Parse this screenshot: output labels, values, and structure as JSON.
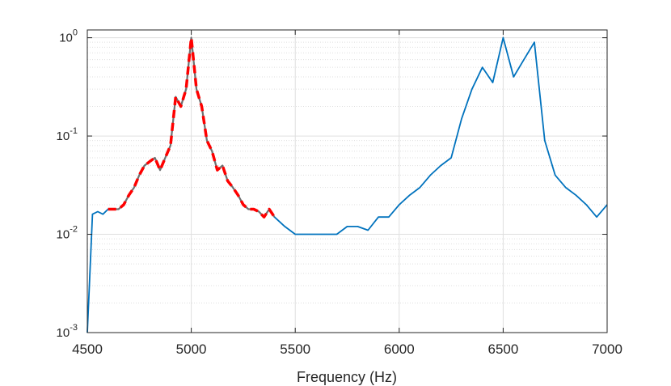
{
  "chart_data": {
    "type": "line",
    "xlabel": "Frequency (Hz)",
    "ylabel": "",
    "xlim": [
      4500,
      7000
    ],
    "ylim": [
      0.001,
      1.2
    ],
    "yscale": "log",
    "grid": true,
    "minor_grid_y": true,
    "x_ticks": [
      "4500",
      "5000",
      "5500",
      "6000",
      "6500",
      "7000"
    ],
    "y_ticks": [
      {
        "base": "10",
        "exp": "-3"
      },
      {
        "base": "10",
        "exp": "-2"
      },
      {
        "base": "10",
        "exp": "-1"
      },
      {
        "base": "10",
        "exp": "0"
      }
    ],
    "colors": {
      "spectrum": "#0072BD",
      "estimate_gray": "#707070",
      "estimate_red": "#FF0000",
      "grid": "#DFDFDF",
      "axes": "#262626"
    },
    "series": [
      {
        "key": "full_spectrum",
        "style": "solid",
        "x": [
          4500,
          4525,
          4550,
          4575,
          4600,
          4625,
          4650,
          4675,
          4700,
          4725,
          4750,
          4775,
          4800,
          4825,
          4850,
          4875,
          4900,
          4925,
          4950,
          4975,
          5000,
          5025,
          5050,
          5075,
          5100,
          5125,
          5150,
          5175,
          5200,
          5225,
          5250,
          5275,
          5300,
          5325,
          5350,
          5375,
          5400,
          5450,
          5500,
          5550,
          5600,
          5650,
          5700,
          5750,
          5800,
          5850,
          5900,
          5950,
          6000,
          6050,
          6100,
          6150,
          6200,
          6250,
          6300,
          6350,
          6400,
          6450,
          6500,
          6550,
          6600,
          6650,
          6700,
          6750,
          6800,
          6850,
          6900,
          6950,
          7000
        ],
        "values": [
          0.001,
          0.016,
          0.017,
          0.016,
          0.018,
          0.018,
          0.018,
          0.02,
          0.025,
          0.03,
          0.04,
          0.05,
          0.055,
          0.06,
          0.045,
          0.06,
          0.08,
          0.25,
          0.2,
          0.3,
          1.0,
          0.3,
          0.2,
          0.09,
          0.07,
          0.045,
          0.05,
          0.035,
          0.03,
          0.025,
          0.02,
          0.018,
          0.018,
          0.017,
          0.015,
          0.018,
          0.015,
          0.012,
          0.01,
          0.01,
          0.01,
          0.01,
          0.01,
          0.012,
          0.012,
          0.011,
          0.015,
          0.015,
          0.02,
          0.025,
          0.03,
          0.04,
          0.05,
          0.06,
          0.15,
          0.3,
          0.5,
          0.35,
          1.0,
          0.4,
          0.6,
          0.9,
          0.09,
          0.04,
          0.03,
          0.025,
          0.02,
          0.015,
          0.02
        ]
      },
      {
        "key": "band_estimate",
        "style": "dashed",
        "x": [
          4600,
          4625,
          4650,
          4675,
          4700,
          4725,
          4750,
          4775,
          4800,
          4825,
          4850,
          4875,
          4900,
          4925,
          4950,
          4975,
          5000,
          5025,
          5050,
          5075,
          5100,
          5125,
          5150,
          5175,
          5200,
          5225,
          5250,
          5275,
          5300,
          5325,
          5350,
          5375,
          5400
        ],
        "values": [
          0.018,
          0.018,
          0.018,
          0.02,
          0.025,
          0.03,
          0.04,
          0.05,
          0.055,
          0.06,
          0.045,
          0.06,
          0.08,
          0.25,
          0.2,
          0.3,
          1.0,
          0.3,
          0.2,
          0.09,
          0.07,
          0.045,
          0.05,
          0.035,
          0.03,
          0.025,
          0.02,
          0.018,
          0.018,
          0.017,
          0.015,
          0.018,
          0.015
        ]
      }
    ]
  }
}
